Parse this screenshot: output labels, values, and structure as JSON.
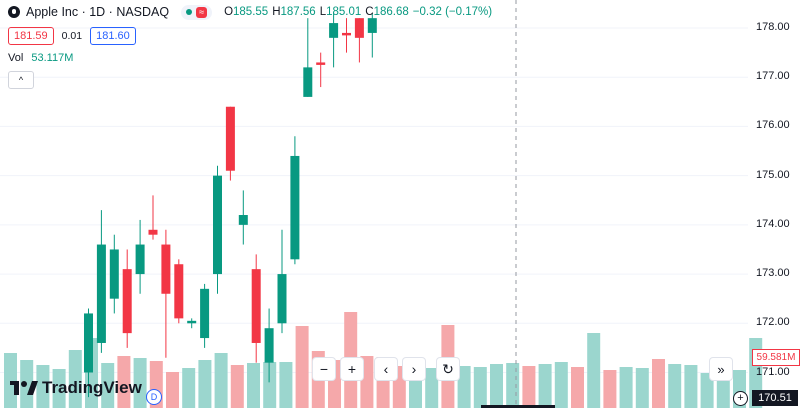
{
  "legend": {
    "symbol": "Apple Inc · 1D · NASDAQ",
    "ohlc": [
      {
        "k": "O",
        "v": "185.55"
      },
      {
        "k": "H",
        "v": "187.56"
      },
      {
        "k": "L",
        "v": "185.01"
      },
      {
        "k": "C",
        "v": "186.68"
      },
      {
        "k": "",
        "v": "−0.32 (−0.17%)"
      }
    ],
    "market_status_mark": "≈"
  },
  "trade": {
    "sell": "181.59",
    "spread": "0.01",
    "buy": "181.60"
  },
  "volume": {
    "label": "Vol",
    "value": "53.117M"
  },
  "collapse_label": "^",
  "nav": {
    "zoom_out": "−",
    "zoom_in": "+",
    "left": "‹",
    "right": "›",
    "reset": "↻",
    "forward": "»"
  },
  "branding": {
    "name": "TradingView",
    "badge": "D"
  },
  "price_axis": {
    "labels": [
      "178.00",
      "177.00",
      "176.00",
      "175.00",
      "174.00",
      "173.00",
      "172.00",
      "171.00"
    ],
    "volume_tag": "59.581M",
    "price_tag": "170.51"
  },
  "colors": {
    "up": "#089981",
    "down": "#f23645",
    "vol_up": "#9bd6ce",
    "vol_down": "#f5a8aa"
  },
  "chart_data": {
    "type": "candlestick",
    "ylim": [
      170.6,
      178.2
    ],
    "candles": [
      {
        "o": 171.0,
        "h": 172.3,
        "l": 170.5,
        "c": 172.2
      },
      {
        "o": 171.6,
        "h": 174.3,
        "l": 171.4,
        "c": 173.6
      },
      {
        "o": 172.5,
        "h": 173.8,
        "l": 172.2,
        "c": 173.5
      },
      {
        "o": 173.1,
        "h": 173.5,
        "l": 171.5,
        "c": 171.8
      },
      {
        "o": 173.0,
        "h": 174.1,
        "l": 172.6,
        "c": 173.6
      },
      {
        "o": 173.9,
        "h": 174.6,
        "l": 173.7,
        "c": 173.8
      },
      {
        "o": 173.6,
        "h": 173.9,
        "l": 171.3,
        "c": 172.6
      },
      {
        "o": 173.2,
        "h": 173.3,
        "l": 172.0,
        "c": 172.1
      },
      {
        "o": 172.0,
        "h": 172.1,
        "l": 171.9,
        "c": 172.05
      },
      {
        "o": 171.7,
        "h": 172.8,
        "l": 171.5,
        "c": 172.7
      },
      {
        "o": 173.0,
        "h": 175.2,
        "l": 172.6,
        "c": 175.0
      },
      {
        "o": 176.4,
        "h": 176.4,
        "l": 174.9,
        "c": 175.1
      },
      {
        "o": 174.0,
        "h": 174.7,
        "l": 173.6,
        "c": 174.2
      },
      {
        "o": 173.1,
        "h": 173.4,
        "l": 171.2,
        "c": 171.6
      },
      {
        "o": 171.2,
        "h": 172.3,
        "l": 170.8,
        "c": 171.9
      },
      {
        "o": 172.0,
        "h": 173.9,
        "l": 171.8,
        "c": 173.0
      },
      {
        "o": 173.3,
        "h": 175.8,
        "l": 173.2,
        "c": 175.4
      },
      {
        "o": 176.6,
        "h": 178.2,
        "l": 176.6,
        "c": 177.2
      },
      {
        "o": 177.3,
        "h": 177.5,
        "l": 176.8,
        "c": 177.25
      },
      {
        "o": 177.8,
        "h": 178.3,
        "l": 177.2,
        "c": 178.1
      },
      {
        "o": 177.9,
        "h": 178.2,
        "l": 177.5,
        "c": 177.85
      },
      {
        "o": 178.2,
        "h": 178.2,
        "l": 177.3,
        "c": 177.8
      },
      {
        "o": 177.9,
        "h": 178.3,
        "l": 177.4,
        "c": 178.2
      }
    ],
    "volume_ylim": [
      0,
      100
    ],
    "volume": [
      {
        "v": 55,
        "up": true
      },
      {
        "v": 48,
        "up": true
      },
      {
        "v": 43,
        "up": true
      },
      {
        "v": 39,
        "up": true
      },
      {
        "v": 58,
        "up": true
      },
      {
        "v": 70,
        "up": true
      },
      {
        "v": 45,
        "up": true
      },
      {
        "v": 52,
        "up": false
      },
      {
        "v": 50,
        "up": true
      },
      {
        "v": 47,
        "up": false
      },
      {
        "v": 36,
        "up": false
      },
      {
        "v": 40,
        "up": true
      },
      {
        "v": 48,
        "up": true
      },
      {
        "v": 55,
        "up": true
      },
      {
        "v": 43,
        "up": false
      },
      {
        "v": 45,
        "up": true
      },
      {
        "v": 46,
        "up": true
      },
      {
        "v": 46,
        "up": true
      },
      {
        "v": 82,
        "up": false
      },
      {
        "v": 57,
        "up": false
      },
      {
        "v": 48,
        "up": false
      },
      {
        "v": 96,
        "up": false
      },
      {
        "v": 52,
        "up": false
      },
      {
        "v": 51,
        "up": false
      },
      {
        "v": 42,
        "up": false
      },
      {
        "v": 41,
        "up": true
      },
      {
        "v": 40,
        "up": true
      },
      {
        "v": 83,
        "up": false
      },
      {
        "v": 42,
        "up": true
      },
      {
        "v": 41,
        "up": true
      },
      {
        "v": 44,
        "up": true
      },
      {
        "v": 45,
        "up": true
      },
      {
        "v": 42,
        "up": false
      },
      {
        "v": 44,
        "up": true
      },
      {
        "v": 46,
        "up": true
      },
      {
        "v": 41,
        "up": false
      },
      {
        "v": 75,
        "up": true
      },
      {
        "v": 38,
        "up": false
      },
      {
        "v": 41,
        "up": true
      },
      {
        "v": 40,
        "up": true
      },
      {
        "v": 49,
        "up": false
      },
      {
        "v": 44,
        "up": true
      },
      {
        "v": 43,
        "up": true
      },
      {
        "v": 35,
        "up": true
      },
      {
        "v": 41,
        "up": true
      },
      {
        "v": 38,
        "up": true
      },
      {
        "v": 70,
        "up": true
      }
    ]
  }
}
